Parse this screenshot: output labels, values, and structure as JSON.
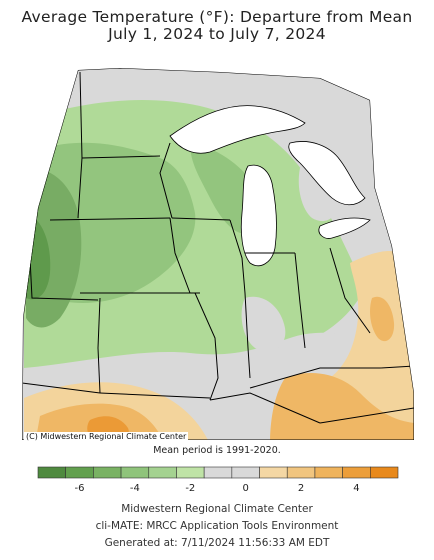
{
  "title_line1": "Average Temperature (°F): Departure from Mean",
  "title_line2": "July 1, 2024 to July 7, 2024",
  "credit": "(C) Midwestern Regional Climate Center",
  "mean_period": "Mean period is 1991-2020.",
  "legend": {
    "colors": [
      "#4f8a3f",
      "#62a04e",
      "#79b263",
      "#8fc47b",
      "#a4d290",
      "#bfe3a6",
      "#d9d9d9",
      "#d9d9d9",
      "#f4d7a4",
      "#f1c57f",
      "#efb35c",
      "#ec9e3a",
      "#e8891c"
    ],
    "tick_labels": [
      "-6",
      "-4",
      "-2",
      "0",
      "2",
      "4"
    ]
  },
  "map_colors": {
    "cool_4": "#5f9a4c",
    "cool_3": "#78ac64",
    "cool_2": "#93c57e",
    "cool_1": "#b0da98",
    "neutral": "#d9d9d9",
    "warm_1": "#f3d49c",
    "warm_2": "#efb765",
    "warm_3": "#eb9a36",
    "water": "#ffffff"
  },
  "footer_line1": "Midwestern Regional Climate Center",
  "footer_line2": "cli-MATE: MRCC Application Tools Environment",
  "footer_line3": "Generated at: 7/11/2024 11:56:33 AM EDT"
}
